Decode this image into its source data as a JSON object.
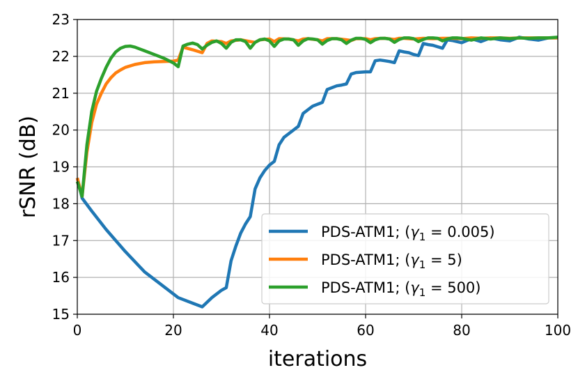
{
  "chart_data": {
    "type": "line",
    "title": "",
    "xlabel": "iterations",
    "ylabel": "rSNR (dB)",
    "xlim": [
      0,
      100
    ],
    "ylim": [
      15,
      23
    ],
    "xticks": [
      0,
      20,
      40,
      60,
      80,
      100
    ],
    "yticks": [
      15,
      16,
      17,
      18,
      19,
      20,
      21,
      22,
      23
    ],
    "grid": true,
    "legend_position": "bottom-right",
    "series": [
      {
        "name": "PDS-ATM1; (γ1 = 0.005)",
        "legend_prefix": "PDS-ATM1; (",
        "legend_math": "γ",
        "legend_sub": "1",
        "legend_suffix": " = 0.005)",
        "color": "#1f77b4",
        "x": [
          0,
          1,
          3,
          6,
          10,
          14,
          18,
          21,
          24,
          26,
          28,
          30,
          31,
          32,
          33,
          34,
          35,
          36,
          37,
          38,
          39,
          40,
          41,
          42,
          43,
          44,
          45,
          46,
          47,
          48,
          49,
          50,
          51,
          52,
          53,
          54,
          55,
          56,
          57,
          58,
          59,
          60,
          61,
          62,
          63,
          64,
          65,
          66,
          67,
          68,
          69,
          70,
          71,
          72,
          73,
          74,
          75,
          76,
          77,
          78,
          80,
          82,
          84,
          86,
          88,
          90,
          92,
          94,
          96,
          98,
          100
        ],
        "y": [
          18.7,
          18.15,
          17.8,
          17.3,
          16.7,
          16.15,
          15.75,
          15.45,
          15.3,
          15.2,
          15.45,
          15.65,
          15.72,
          16.45,
          16.85,
          17.2,
          17.45,
          17.65,
          18.4,
          18.7,
          18.9,
          19.05,
          19.15,
          19.6,
          19.8,
          19.9,
          20.0,
          20.1,
          20.45,
          20.55,
          20.65,
          20.7,
          20.75,
          21.1,
          21.15,
          21.2,
          21.22,
          21.25,
          21.52,
          21.56,
          21.57,
          21.58,
          21.58,
          21.88,
          21.9,
          21.88,
          21.86,
          21.83,
          22.15,
          22.12,
          22.1,
          22.05,
          22.02,
          22.35,
          22.32,
          22.3,
          22.26,
          22.22,
          22.45,
          22.43,
          22.37,
          22.48,
          22.4,
          22.5,
          22.45,
          22.42,
          22.52,
          22.47,
          22.44,
          22.5,
          22.5
        ]
      },
      {
        "name": "PDS-ATM1; (γ1 = 5)",
        "legend_prefix": "PDS-ATM1; (",
        "legend_math": "γ",
        "legend_sub": "1",
        "legend_suffix": " = 5)",
        "color": "#ff7f0e",
        "x": [
          0,
          1,
          2,
          3,
          4,
          5,
          6,
          7,
          8,
          9,
          10,
          12,
          14,
          16,
          18,
          20,
          21,
          22,
          24,
          26,
          27,
          28,
          30,
          31,
          32,
          34,
          36,
          37,
          38,
          40,
          41,
          42,
          44,
          46,
          47,
          48,
          50,
          51,
          52,
          54,
          56,
          57,
          58,
          60,
          61,
          62,
          64,
          66,
          67,
          68,
          70,
          72,
          74,
          76,
          78,
          80,
          82,
          84,
          86,
          88,
          90,
          92,
          94,
          96,
          98,
          100
        ],
        "y": [
          18.7,
          18.2,
          19.4,
          20.2,
          20.7,
          21.0,
          21.25,
          21.42,
          21.55,
          21.63,
          21.7,
          21.78,
          21.83,
          21.85,
          21.86,
          21.87,
          21.9,
          22.25,
          22.18,
          22.1,
          22.35,
          22.42,
          22.4,
          22.35,
          22.42,
          22.45,
          22.4,
          22.38,
          22.45,
          22.47,
          22.4,
          22.48,
          22.47,
          22.42,
          22.47,
          22.48,
          22.45,
          22.42,
          22.48,
          22.48,
          22.45,
          22.43,
          22.48,
          22.48,
          22.45,
          22.48,
          22.49,
          22.46,
          22.49,
          22.49,
          22.47,
          22.49,
          22.48,
          22.49,
          22.49,
          22.48,
          22.5,
          22.49,
          22.5,
          22.5,
          22.49,
          22.5,
          22.5,
          22.5,
          22.5,
          22.5
        ]
      },
      {
        "name": "PDS-ATM1; (γ1 = 500)",
        "legend_prefix": "PDS-ATM1; (",
        "legend_math": "γ",
        "legend_sub": "1",
        "legend_suffix": " = 500)",
        "color": "#2ca02c",
        "x": [
          0,
          1,
          2,
          3,
          4,
          5,
          6,
          7,
          8,
          9,
          10,
          11,
          12,
          13,
          14,
          16,
          18,
          20,
          21,
          22,
          23,
          24,
          25,
          26,
          27,
          28,
          29,
          30,
          31,
          32,
          33,
          34,
          35,
          36,
          37,
          38,
          39,
          40,
          41,
          42,
          43,
          44,
          45,
          46,
          47,
          48,
          49,
          50,
          51,
          52,
          53,
          54,
          55,
          56,
          57,
          58,
          59,
          60,
          61,
          62,
          63,
          64,
          65,
          66,
          67,
          68,
          69,
          70,
          71,
          72,
          73,
          74,
          75,
          76,
          77,
          78,
          79,
          80,
          82,
          84,
          86,
          88,
          90,
          92,
          94,
          96,
          98,
          100
        ],
        "y": [
          18.6,
          18.2,
          19.6,
          20.5,
          21.05,
          21.4,
          21.7,
          21.95,
          22.12,
          22.22,
          22.27,
          22.28,
          22.25,
          22.2,
          22.15,
          22.05,
          21.95,
          21.82,
          21.72,
          22.28,
          22.33,
          22.36,
          22.32,
          22.2,
          22.3,
          22.38,
          22.42,
          22.35,
          22.22,
          22.38,
          22.45,
          22.45,
          22.4,
          22.22,
          22.38,
          22.45,
          22.47,
          22.42,
          22.27,
          22.42,
          22.47,
          22.47,
          22.45,
          22.3,
          22.42,
          22.48,
          22.47,
          22.45,
          22.33,
          22.43,
          22.48,
          22.48,
          22.45,
          22.35,
          22.44,
          22.49,
          22.49,
          22.46,
          22.37,
          22.45,
          22.49,
          22.49,
          22.47,
          22.38,
          22.46,
          22.5,
          22.5,
          22.48,
          22.4,
          22.46,
          22.5,
          22.5,
          22.49,
          22.42,
          22.47,
          22.5,
          22.5,
          22.49,
          22.44,
          22.5,
          22.47,
          22.5,
          22.48,
          22.5,
          22.49,
          22.5,
          22.5,
          22.52
        ]
      }
    ]
  }
}
